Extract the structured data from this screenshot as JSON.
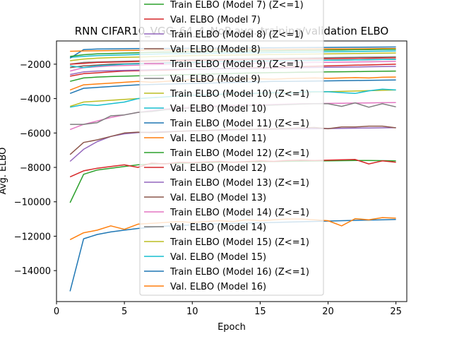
{
  "chart_data": {
    "type": "line",
    "title": "RNN CIFAR10_VGG_64_4_NoP avg. training/validation ELBO",
    "xlabel": "Epoch",
    "ylabel": "Avg. ELBO",
    "xlim": [
      0.0,
      25.8
    ],
    "ylim": [
      -15800,
      -650
    ],
    "xticks": [
      0,
      5,
      10,
      15,
      20,
      25
    ],
    "yticks": [
      -14000,
      -12000,
      -10000,
      -8000,
      -6000,
      -4000,
      -2000
    ],
    "xtick_labels": [
      "0",
      "5",
      "10",
      "15",
      "20",
      "25"
    ],
    "ytick_labels": [
      "−14000",
      "−12000",
      "−10000",
      "−8000",
      "−6000",
      "−4000",
      "−2000"
    ],
    "legend_position": "upper center",
    "x": [
      1,
      2,
      3,
      4,
      5,
      6,
      7,
      8,
      9,
      10,
      11,
      12,
      13,
      14,
      15,
      16,
      17,
      18,
      19,
      20,
      21,
      22,
      23,
      24,
      25
    ],
    "series": [
      {
        "name": "Train ELBO (Model 7) (Z<=1)",
        "color": "#2ca02c",
        "values": [
          -10050,
          -8400,
          -8150,
          -8050,
          -7950,
          -7850,
          -7800,
          -7780,
          -7760,
          -7740,
          -7720,
          -7700,
          -7690,
          -7680,
          -7670,
          -7660,
          -7650,
          -7640,
          -7630,
          -7620,
          -7610,
          -7600,
          -7600,
          -7610,
          -7620
        ]
      },
      {
        "name": "Val. ELBO (Model 7)",
        "color": "#d62728",
        "values": [
          -8550,
          -8200,
          -8050,
          -7950,
          -7850,
          -8000,
          -7750,
          -7800,
          -7700,
          -7720,
          -7680,
          -7650,
          -7700,
          -7660,
          -7620,
          -7650,
          -7600,
          -7580,
          -7600,
          -7580,
          -7560,
          -7540,
          -7800,
          -7620,
          -7700
        ]
      },
      {
        "name": "Train ELBO (Model 8) (Z<=1)",
        "color": "#9467bd",
        "values": [
          -7650,
          -6950,
          -6500,
          -6200,
          -6050,
          -5980,
          -5950,
          -5920,
          -5900,
          -5880,
          -5860,
          -5840,
          -5820,
          -5800,
          -5790,
          -5780,
          -5770,
          -5760,
          -5750,
          -5740,
          -5730,
          -5720,
          -5710,
          -5700,
          -5690
        ]
      },
      {
        "name": "Val. ELBO (Model 8)",
        "color": "#8c564b",
        "values": [
          -7250,
          -6550,
          -6400,
          -6200,
          -6000,
          -5950,
          -5980,
          -5950,
          -5900,
          -5870,
          -5850,
          -5820,
          -5800,
          -5790,
          -5780,
          -5760,
          -5740,
          -5700,
          -5680,
          -5750,
          -5650,
          -5650,
          -5600,
          -5600,
          -5700
        ]
      },
      {
        "name": "Train ELBO (Model 9) (Z<=1)",
        "color": "#e377c2",
        "values": [
          -5800,
          -5500,
          -5300,
          -5100,
          -4950,
          -4800,
          -4700,
          -4600,
          -4550,
          -4500,
          -4450,
          -4420,
          -4400,
          -4380,
          -4360,
          -4340,
          -4320,
          -4300,
          -4290,
          -4280,
          -4270,
          -4260,
          -4250,
          -4240,
          -4230
        ]
      },
      {
        "name": "Val. ELBO (Model 9)",
        "color": "#7f7f7f",
        "values": [
          -5500,
          -5500,
          -5400,
          -5000,
          -4950,
          -4800,
          -4750,
          -4650,
          -4600,
          -4550,
          -4500,
          -4480,
          -4450,
          -4420,
          -4400,
          -4380,
          -4350,
          -4320,
          -4300,
          -4300,
          -4450,
          -4250,
          -4500,
          -4300,
          -4480
        ]
      },
      {
        "name": "Train ELBO (Model 10) (Z<=1)",
        "color": "#bcbd22",
        "values": [
          -4450,
          -4200,
          -4150,
          -4100,
          -4050,
          -4000,
          -3950,
          -3900,
          -3850,
          -3800,
          -3780,
          -3760,
          -3740,
          -3720,
          -3700,
          -3680,
          -3660,
          -3640,
          -3620,
          -3600,
          -3580,
          -3560,
          -3540,
          -3520,
          -3500
        ]
      },
      {
        "name": "Val. ELBO (Model 10)",
        "color": "#17becf",
        "values": [
          -4500,
          -4350,
          -4400,
          -4300,
          -4200,
          -4000,
          -3950,
          -3900,
          -3850,
          -3800,
          -3780,
          -3750,
          -3700,
          -3720,
          -3680,
          -3650,
          -3700,
          -3620,
          -3600,
          -3600,
          -3650,
          -3700,
          -3550,
          -3450,
          -3500
        ]
      },
      {
        "name": "Train ELBO (Model 11) (Z<=1)",
        "color": "#1f77b4",
        "values": [
          -3700,
          -3400,
          -3350,
          -3300,
          -3250,
          -3200,
          -3180,
          -3160,
          -3140,
          -3120,
          -3100,
          -3080,
          -3060,
          -3040,
          -3020,
          -3000,
          -3000,
          -2990,
          -2980,
          -2970,
          -2960,
          -2950,
          -2940,
          -2930,
          -2920
        ]
      },
      {
        "name": "Val. ELBO (Model 11)",
        "color": "#ff7f0e",
        "values": [
          -3500,
          -3200,
          -3150,
          -3100,
          -3050,
          -3000,
          -3050,
          -3000,
          -2950,
          -2900,
          -2920,
          -2900,
          -2880,
          -2860,
          -2850,
          -2870,
          -2840,
          -2820,
          -2800,
          -2820,
          -2800,
          -2780,
          -2800,
          -2760,
          -2750
        ]
      },
      {
        "name": "Train ELBO (Model 12) (Z<=1)",
        "color": "#2ca02c",
        "values": [
          -3000,
          -2800,
          -2750,
          -2720,
          -2700,
          -2680,
          -2660,
          -2640,
          -2620,
          -2600,
          -2580,
          -2560,
          -2540,
          -2520,
          -2500,
          -2490,
          -2480,
          -2470,
          -2460,
          -2450,
          -2440,
          -2430,
          -2420,
          -2410,
          -2400
        ]
      },
      {
        "name": "Val. ELBO (Model 12)",
        "color": "#d62728",
        "values": [
          -2700,
          -2550,
          -2500,
          -2450,
          -2400,
          -2380,
          -2360,
          -2340,
          -2320,
          -2300,
          -2280,
          -2260,
          -2240,
          -2220,
          -2200,
          -2180,
          -2160,
          -2140,
          -2120,
          -2100,
          -2080,
          -2060,
          -2040,
          -2020,
          -2000
        ]
      },
      {
        "name": "Train ELBO (Model 13) (Z<=1)",
        "color": "#9467bd",
        "values": [
          -2600,
          -2450,
          -2400,
          -2380,
          -2360,
          -2340,
          -2320,
          -2300,
          -2290,
          -2280,
          -2270,
          -2260,
          -2250,
          -2240,
          -2230,
          -2220,
          -2210,
          -2200,
          -2190,
          -2180,
          -2170,
          -2160,
          -2150,
          -2140,
          -2130
        ]
      },
      {
        "name": "Val. ELBO (Model 13)",
        "color": "#8c564b",
        "values": [
          -2200,
          -2100,
          -2050,
          -2000,
          -1980,
          -1960,
          -1940,
          -1920,
          -1900,
          -1880,
          -1860,
          -1850,
          -1840,
          -1830,
          -1820,
          -1810,
          -1800,
          -1790,
          -1780,
          -1770,
          -1760,
          -1750,
          -1740,
          -1730,
          -1720
        ]
      },
      {
        "name": "Train ELBO (Model 14) (Z<=1)",
        "color": "#e377c2",
        "values": [
          -2400,
          -2200,
          -2150,
          -2100,
          -2080,
          -2060,
          -2040,
          -2020,
          -2000,
          -1990,
          -1980,
          -1970,
          -1960,
          -1950,
          -1940,
          -1930,
          -1920,
          -1910,
          -1900,
          -1890,
          -1880,
          -1870,
          -1860,
          -1850,
          -1840
        ]
      },
      {
        "name": "Val. ELBO (Model 14)",
        "color": "#7f7f7f",
        "values": [
          -2000,
          -1900,
          -1870,
          -1850,
          -1830,
          -1810,
          -1790,
          -1770,
          -1750,
          -1730,
          -1710,
          -1700,
          -1690,
          -1680,
          -1670,
          -1660,
          -1650,
          -1640,
          -1630,
          -1620,
          -1610,
          -1600,
          -1590,
          -1580,
          -1570
        ]
      },
      {
        "name": "Train ELBO (Model 15) (Z<=1)",
        "color": "#bcbd22",
        "values": [
          -1800,
          -1700,
          -1650,
          -1620,
          -1600,
          -1580,
          -1560,
          -1540,
          -1520,
          -1500,
          -1490,
          -1480,
          -1470,
          -1460,
          -1450,
          -1440,
          -1430,
          -1420,
          -1410,
          -1400,
          -1390,
          -1380,
          -1370,
          -1360,
          -1350
        ]
      },
      {
        "name": "Val. ELBO (Model 15)",
        "color": "#17becf",
        "values": [
          -1600,
          -1550,
          -1500,
          -1480,
          -1460,
          -1440,
          -1420,
          -1400,
          -1390,
          -1380,
          -1370,
          -1360,
          -1350,
          -1340,
          -1330,
          -1320,
          -1310,
          -1300,
          -1290,
          -1280,
          -1270,
          -1260,
          -1250,
          -1240,
          -1230
        ]
      },
      {
        "name": "Train ELBO (Model 16) (Z<=1)",
        "color": "#1f77b4",
        "values": [
          -15200,
          -12150,
          -11900,
          -11750,
          -11650,
          -11550,
          -11480,
          -11420,
          -11380,
          -11340,
          -11300,
          -11280,
          -11260,
          -11240,
          -11220,
          -11200,
          -11180,
          -11160,
          -11140,
          -11120,
          -11100,
          -11080,
          -11060,
          -11050,
          -11030
        ]
      },
      {
        "name": "Val. ELBO (Model 16)",
        "color": "#ff7f0e",
        "values": [
          -12200,
          -11800,
          -11650,
          -11400,
          -11600,
          -11300,
          -11250,
          -11200,
          -11150,
          -11200,
          -11150,
          -11100,
          -11150,
          -11050,
          -11100,
          -11050,
          -11000,
          -11000,
          -11050,
          -11100,
          -11400,
          -10980,
          -11050,
          -10920,
          -10950
        ]
      },
      {
        "name": "",
        "color": "#1f77b4",
        "values": [
          -1650,
          -1150,
          -1120,
          -1110,
          -1100,
          -1095,
          -1090,
          -1085,
          -1080,
          -1075,
          -1070,
          -1065,
          -1060,
          -1055,
          -1050,
          -1045,
          -1040,
          -1035,
          -1030,
          -1025,
          -1020,
          -1015,
          -1010,
          -1005,
          -1000
        ]
      },
      {
        "name": "",
        "color": "#ff7f0e",
        "values": [
          -1250,
          -1230,
          -1220,
          -1210,
          -1200,
          -1190,
          -1180,
          -1175,
          -1170,
          -1165,
          -1160,
          -1155,
          -1150,
          -1145,
          -1140,
          -1135,
          -1130,
          -1125,
          -1120,
          -1115,
          -1110,
          -1105,
          -1100,
          -1095,
          -1090
        ]
      },
      {
        "name": "",
        "color": "#2ca02c",
        "values": [
          -1550,
          -1450,
          -1400,
          -1380,
          -1360,
          -1340,
          -1320,
          -1300,
          -1290,
          -1280,
          -1270,
          -1260,
          -1250,
          -1240,
          -1230,
          -1220,
          -1210,
          -1200,
          -1190,
          -1180,
          -1170,
          -1160,
          -1150,
          -1140,
          -1130
        ]
      },
      {
        "name": "",
        "color": "#d62728",
        "values": [
          -2000,
          -1950,
          -1900,
          -1880,
          -1860,
          -1840,
          -1820,
          -1800,
          -1790,
          -1780,
          -1770,
          -1760,
          -1750,
          -1740,
          -1730,
          -1720,
          -1710,
          -1700,
          -1690,
          -1680,
          -1670,
          -1660,
          -1650,
          -1640,
          -1630
        ]
      },
      {
        "name": "",
        "color": "#17becf",
        "values": [
          -2100,
          -2200,
          -2100,
          -2050,
          -2000,
          -1980,
          -1960,
          -1940,
          -1920,
          -1900,
          -1880,
          -1860,
          -1840,
          -1830,
          -1820,
          -1810,
          -1800,
          -1790,
          -1780,
          -1770,
          -1760,
          -1750,
          -1740,
          -1730,
          -1720
        ]
      }
    ],
    "legend_entries": [
      "Train ELBO (Model 7) (Z<=1)",
      "Val. ELBO (Model 7)",
      "Train ELBO (Model 8) (Z<=1)",
      "Val. ELBO (Model 8)",
      "Train ELBO (Model 9) (Z<=1)",
      "Val. ELBO (Model 9)",
      "Train ELBO (Model 10) (Z<=1)",
      "Val. ELBO (Model 10)",
      "Train ELBO (Model 11) (Z<=1)",
      "Val. ELBO (Model 11)",
      "Train ELBO (Model 12) (Z<=1)",
      "Val. ELBO (Model 12)",
      "Train ELBO (Model 13) (Z<=1)",
      "Val. ELBO (Model 13)",
      "Train ELBO (Model 14) (Z<=1)",
      "Val. ELBO (Model 14)",
      "Train ELBO (Model 15) (Z<=1)",
      "Val. ELBO (Model 15)",
      "Train ELBO (Model 16) (Z<=1)",
      "Val. ELBO (Model 16)"
    ],
    "legend_colors": [
      "#2ca02c",
      "#d62728",
      "#9467bd",
      "#8c564b",
      "#e377c2",
      "#7f7f7f",
      "#bcbd22",
      "#17becf",
      "#1f77b4",
      "#ff7f0e",
      "#2ca02c",
      "#d62728",
      "#9467bd",
      "#8c564b",
      "#e377c2",
      "#7f7f7f",
      "#bcbd22",
      "#17becf",
      "#1f77b4",
      "#ff7f0e"
    ],
    "grid": false
  }
}
